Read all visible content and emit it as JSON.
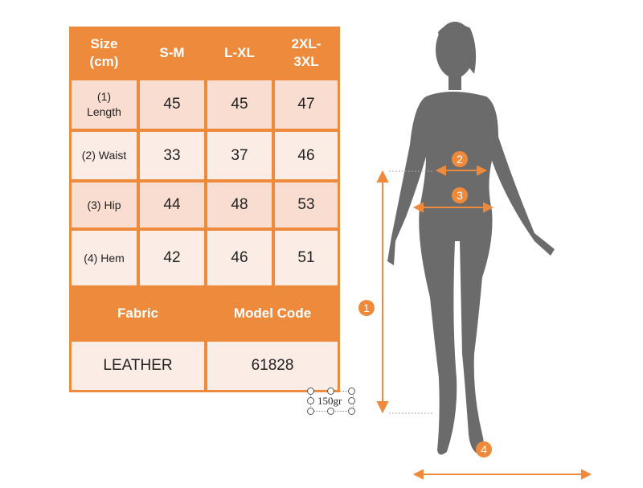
{
  "size_table": {
    "headers": [
      "Size\n(cm)",
      "S-M",
      "L-XL",
      "2XL-\n3XL"
    ],
    "rows": [
      {
        "label": "(1)\nLength",
        "values": [
          "45",
          "45",
          "47"
        ]
      },
      {
        "label": "(2) Waist",
        "values": [
          "33",
          "37",
          "46"
        ]
      },
      {
        "label": "(3) Hip",
        "values": [
          "44",
          "48",
          "53"
        ]
      },
      {
        "label": "(4) Hem",
        "values": [
          "42",
          "46",
          "51"
        ]
      }
    ],
    "fabric_header": "Fabric",
    "model_code_header": "Model Code",
    "fabric": "LEATHER",
    "model_code": "61828"
  },
  "text_box": {
    "value": "150gr"
  },
  "badges": [
    "1",
    "2",
    "3",
    "4"
  ],
  "colors": {
    "accent": "#ee8a3c",
    "row_dark": "#f8ddd0",
    "row_light": "#fcece6",
    "silhouette": "#6b6b6b"
  }
}
